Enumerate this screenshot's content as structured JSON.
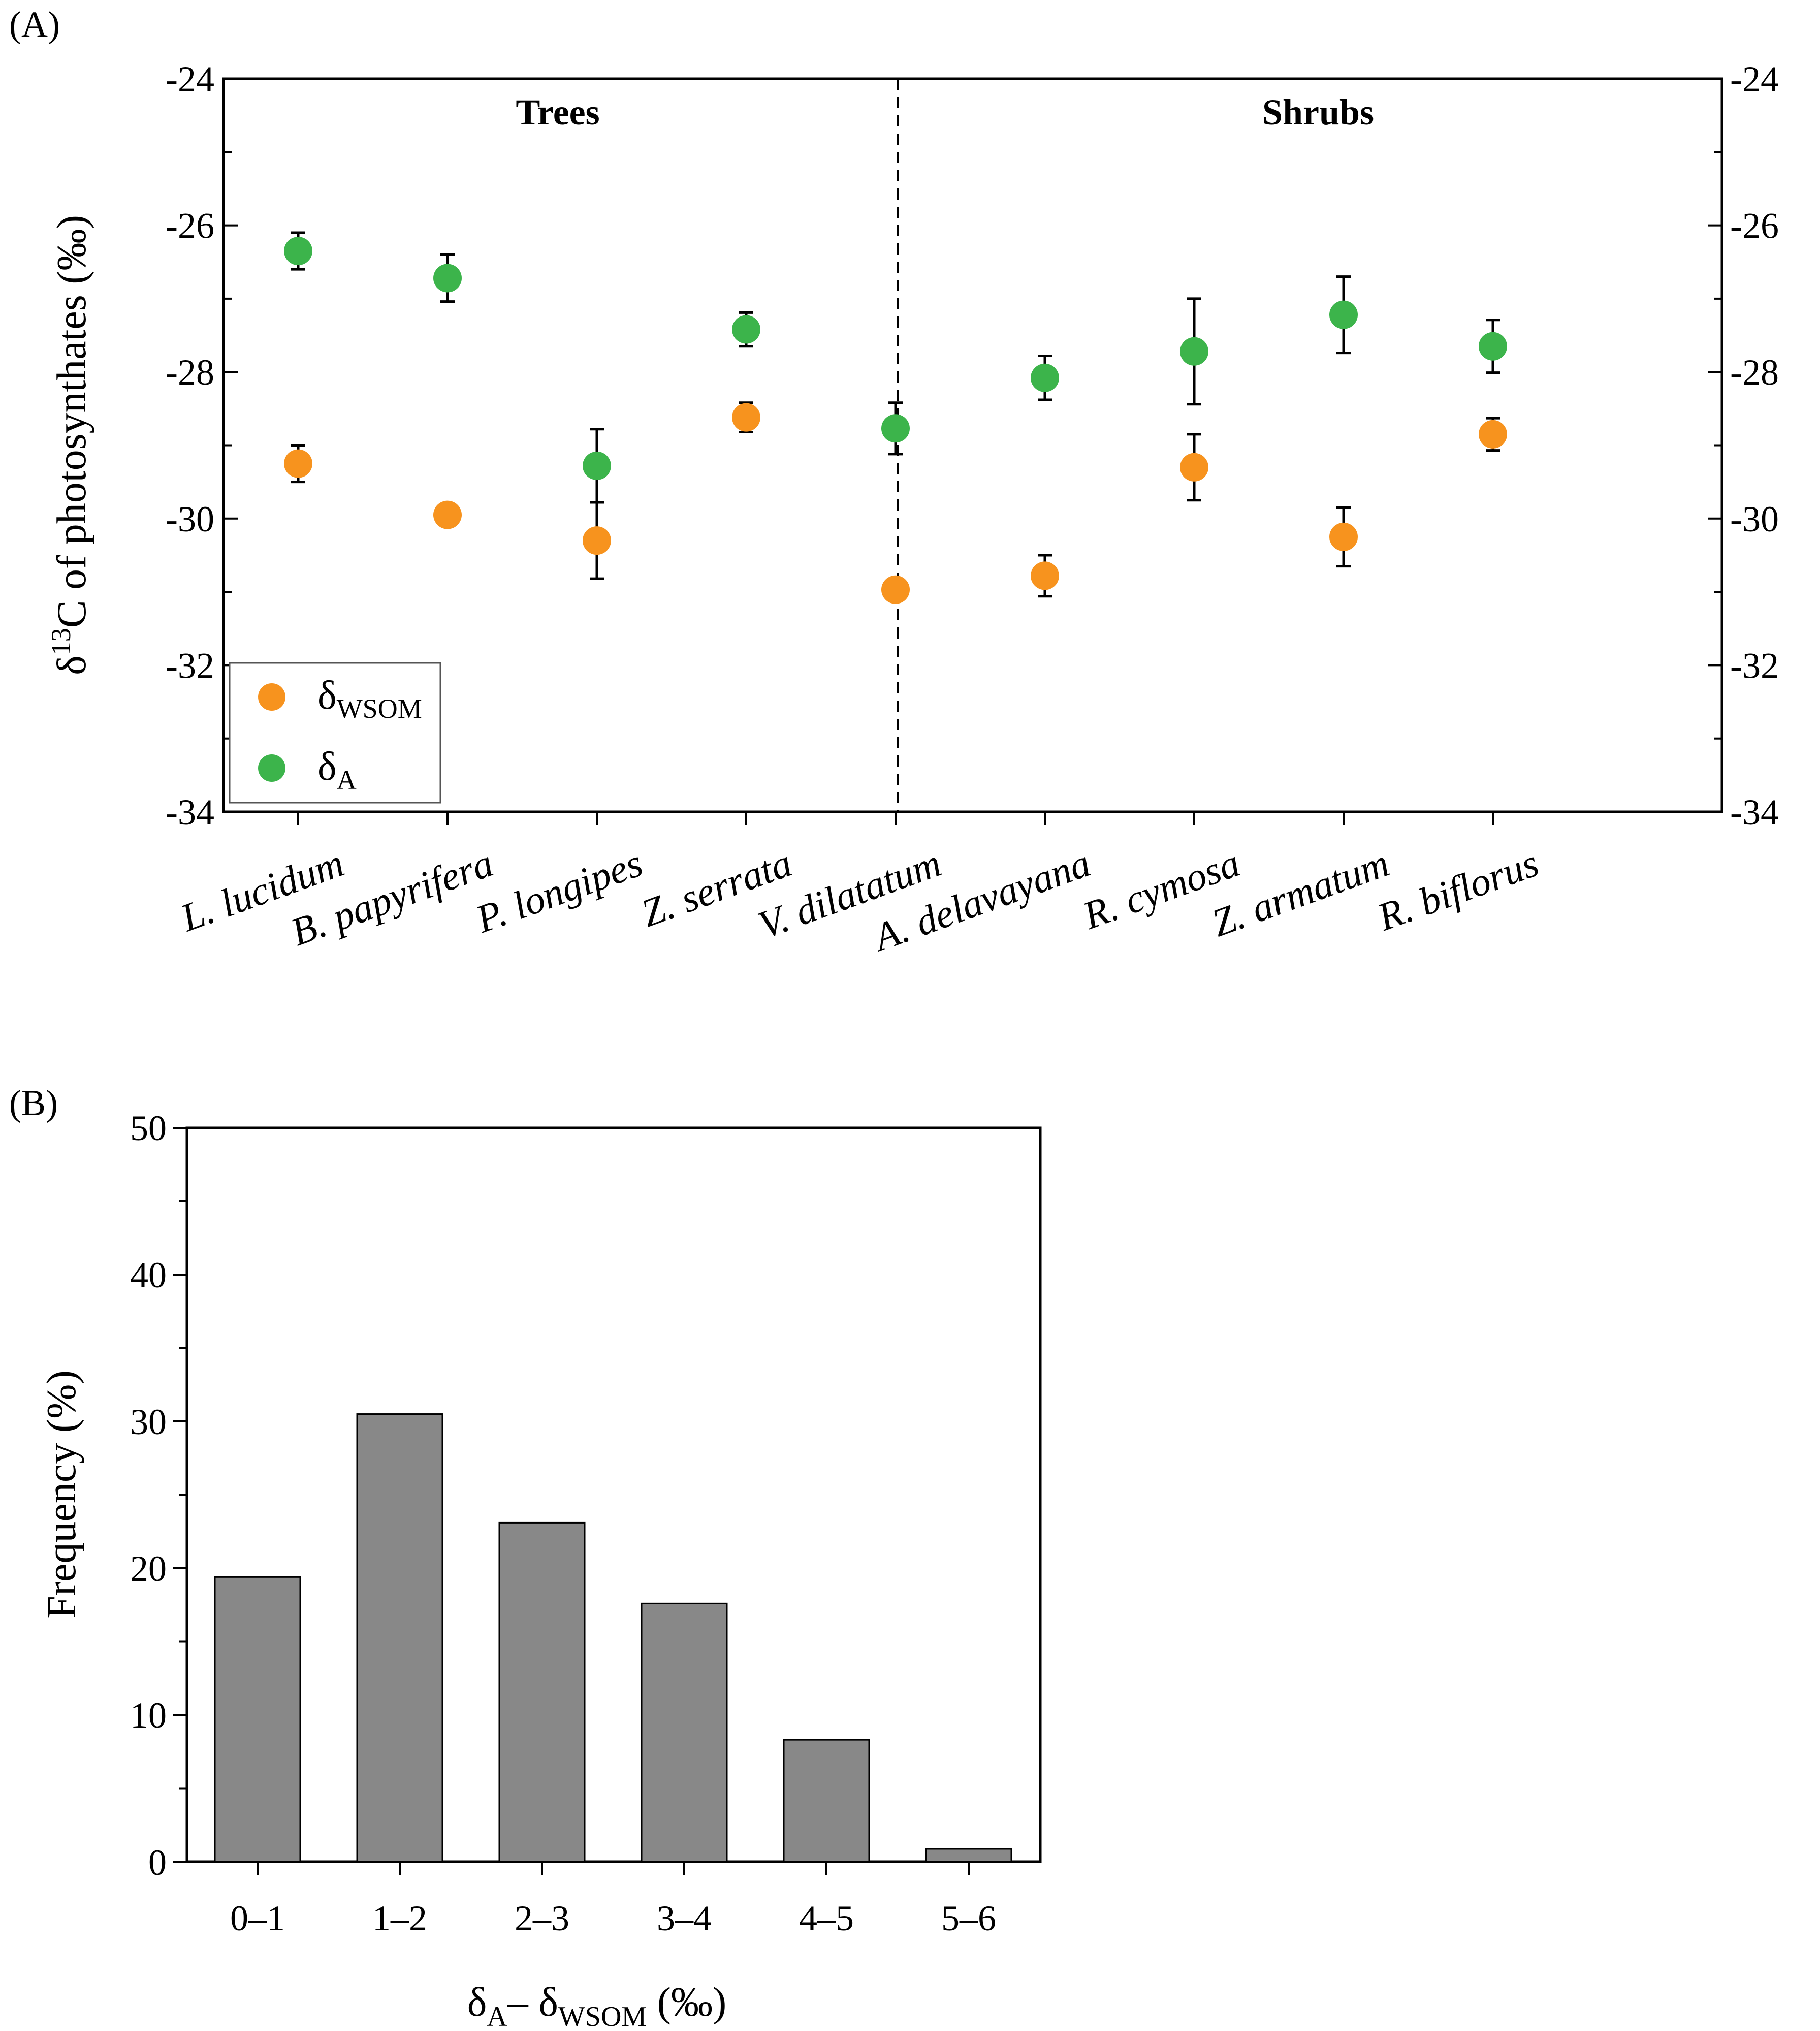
{
  "chart_data": [
    {
      "panel_label": "(A)",
      "type": "scatter",
      "ylabel_prefix": "δ",
      "ylabel_sup": "13",
      "ylabel_rest": "C of photosynthates (‰)",
      "ylim": [
        -34,
        -24
      ],
      "yticks": [
        "-24",
        "-26",
        "-28",
        "-30",
        "-32",
        "-34"
      ],
      "ytick_values": [
        -24,
        -26,
        -28,
        -30,
        -32,
        -34
      ],
      "groups": [
        "Trees",
        "Shrubs"
      ],
      "categories": [
        "L. lucidum",
        "B. papyrifera",
        "P. longipes",
        "Z. serrata",
        "V. dilatatum",
        "A. delavayana",
        "R. cymosa",
        "Z. armatum",
        "R. biflorus"
      ],
      "series": [
        {
          "name": "δWSOM",
          "name_main": "δ",
          "name_sub": "WSOM",
          "color": "#f7931e",
          "values": [
            -29.25,
            -29.95,
            -30.3,
            -28.62,
            -30.97,
            -30.78,
            -29.3,
            -30.25,
            -28.85
          ],
          "errors": [
            0.25,
            0.15,
            0.52,
            0.2,
            0.15,
            0.28,
            0.45,
            0.4,
            0.22
          ]
        },
        {
          "name": "δA",
          "name_main": "δ",
          "name_sub": "A",
          "color": "#3cb44b",
          "values": [
            -26.35,
            -26.72,
            -29.28,
            -27.42,
            -28.77,
            -28.08,
            -27.72,
            -27.22,
            -27.65
          ],
          "errors": [
            0.25,
            0.32,
            0.5,
            0.23,
            0.35,
            0.3,
            0.72,
            0.52,
            0.36
          ]
        }
      ],
      "legend_location": "lower-left"
    },
    {
      "panel_label": "(B)",
      "type": "bar",
      "categories": [
        "0–1",
        "1–2",
        "2–3",
        "3–4",
        "4–5",
        "5–6"
      ],
      "values": [
        19.4,
        30.5,
        23.1,
        17.6,
        8.3,
        0.9
      ],
      "ylabel": "Frequency (%)",
      "xlabel_parts": [
        "δ",
        "A",
        "– δ",
        "WSOM",
        " (‰)"
      ],
      "ylim": [
        0,
        50
      ],
      "yticks": [
        "0",
        "10",
        "20",
        "30",
        "40",
        "50"
      ],
      "ytick_values": [
        0,
        10,
        20,
        30,
        40,
        50
      ],
      "bar_color": "#888888"
    }
  ]
}
